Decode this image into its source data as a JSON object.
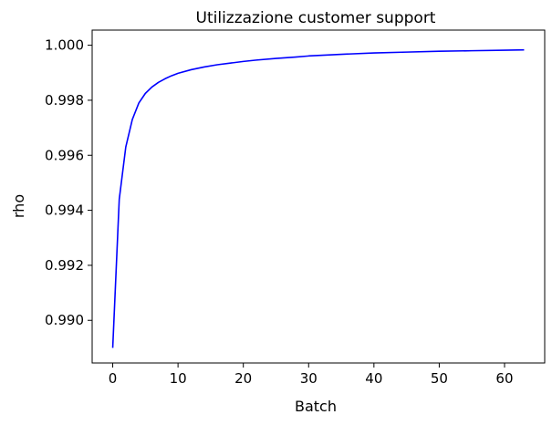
{
  "chart_data": {
    "type": "line",
    "title": "Utilizzazione customer support",
    "xlabel": "Batch",
    "ylabel": "rho",
    "xlim": [
      -3.15,
      66.15
    ],
    "ylim": [
      0.98845,
      1.00055
    ],
    "xticks": [
      0,
      10,
      20,
      30,
      40,
      50,
      60
    ],
    "xtick_labels": [
      "0",
      "10",
      "20",
      "30",
      "40",
      "50",
      "60"
    ],
    "yticks": [
      0.99,
      0.992,
      0.994,
      0.996,
      0.998,
      1.0
    ],
    "ytick_labels": [
      "0.990",
      "0.992",
      "0.994",
      "0.996",
      "0.998",
      "1.000"
    ],
    "grid": false,
    "series": [
      {
        "color": "#0000ff",
        "x": [
          0,
          1,
          2,
          3,
          4,
          5,
          6,
          7,
          8,
          9,
          10,
          12,
          14,
          16,
          18,
          20,
          22,
          25,
          28,
          30,
          35,
          40,
          45,
          50,
          55,
          60,
          63
        ],
        "y": [
          0.989,
          0.9944,
          0.9963,
          0.9973,
          0.9979,
          0.99825,
          0.99848,
          0.99865,
          0.99878,
          0.99889,
          0.99898,
          0.99911,
          0.99921,
          0.99929,
          0.99935,
          0.99941,
          0.99946,
          0.99952,
          0.99957,
          0.99961,
          0.99967,
          0.99972,
          0.99975,
          0.99978,
          0.9998,
          0.99982,
          0.99983
        ]
      }
    ]
  }
}
